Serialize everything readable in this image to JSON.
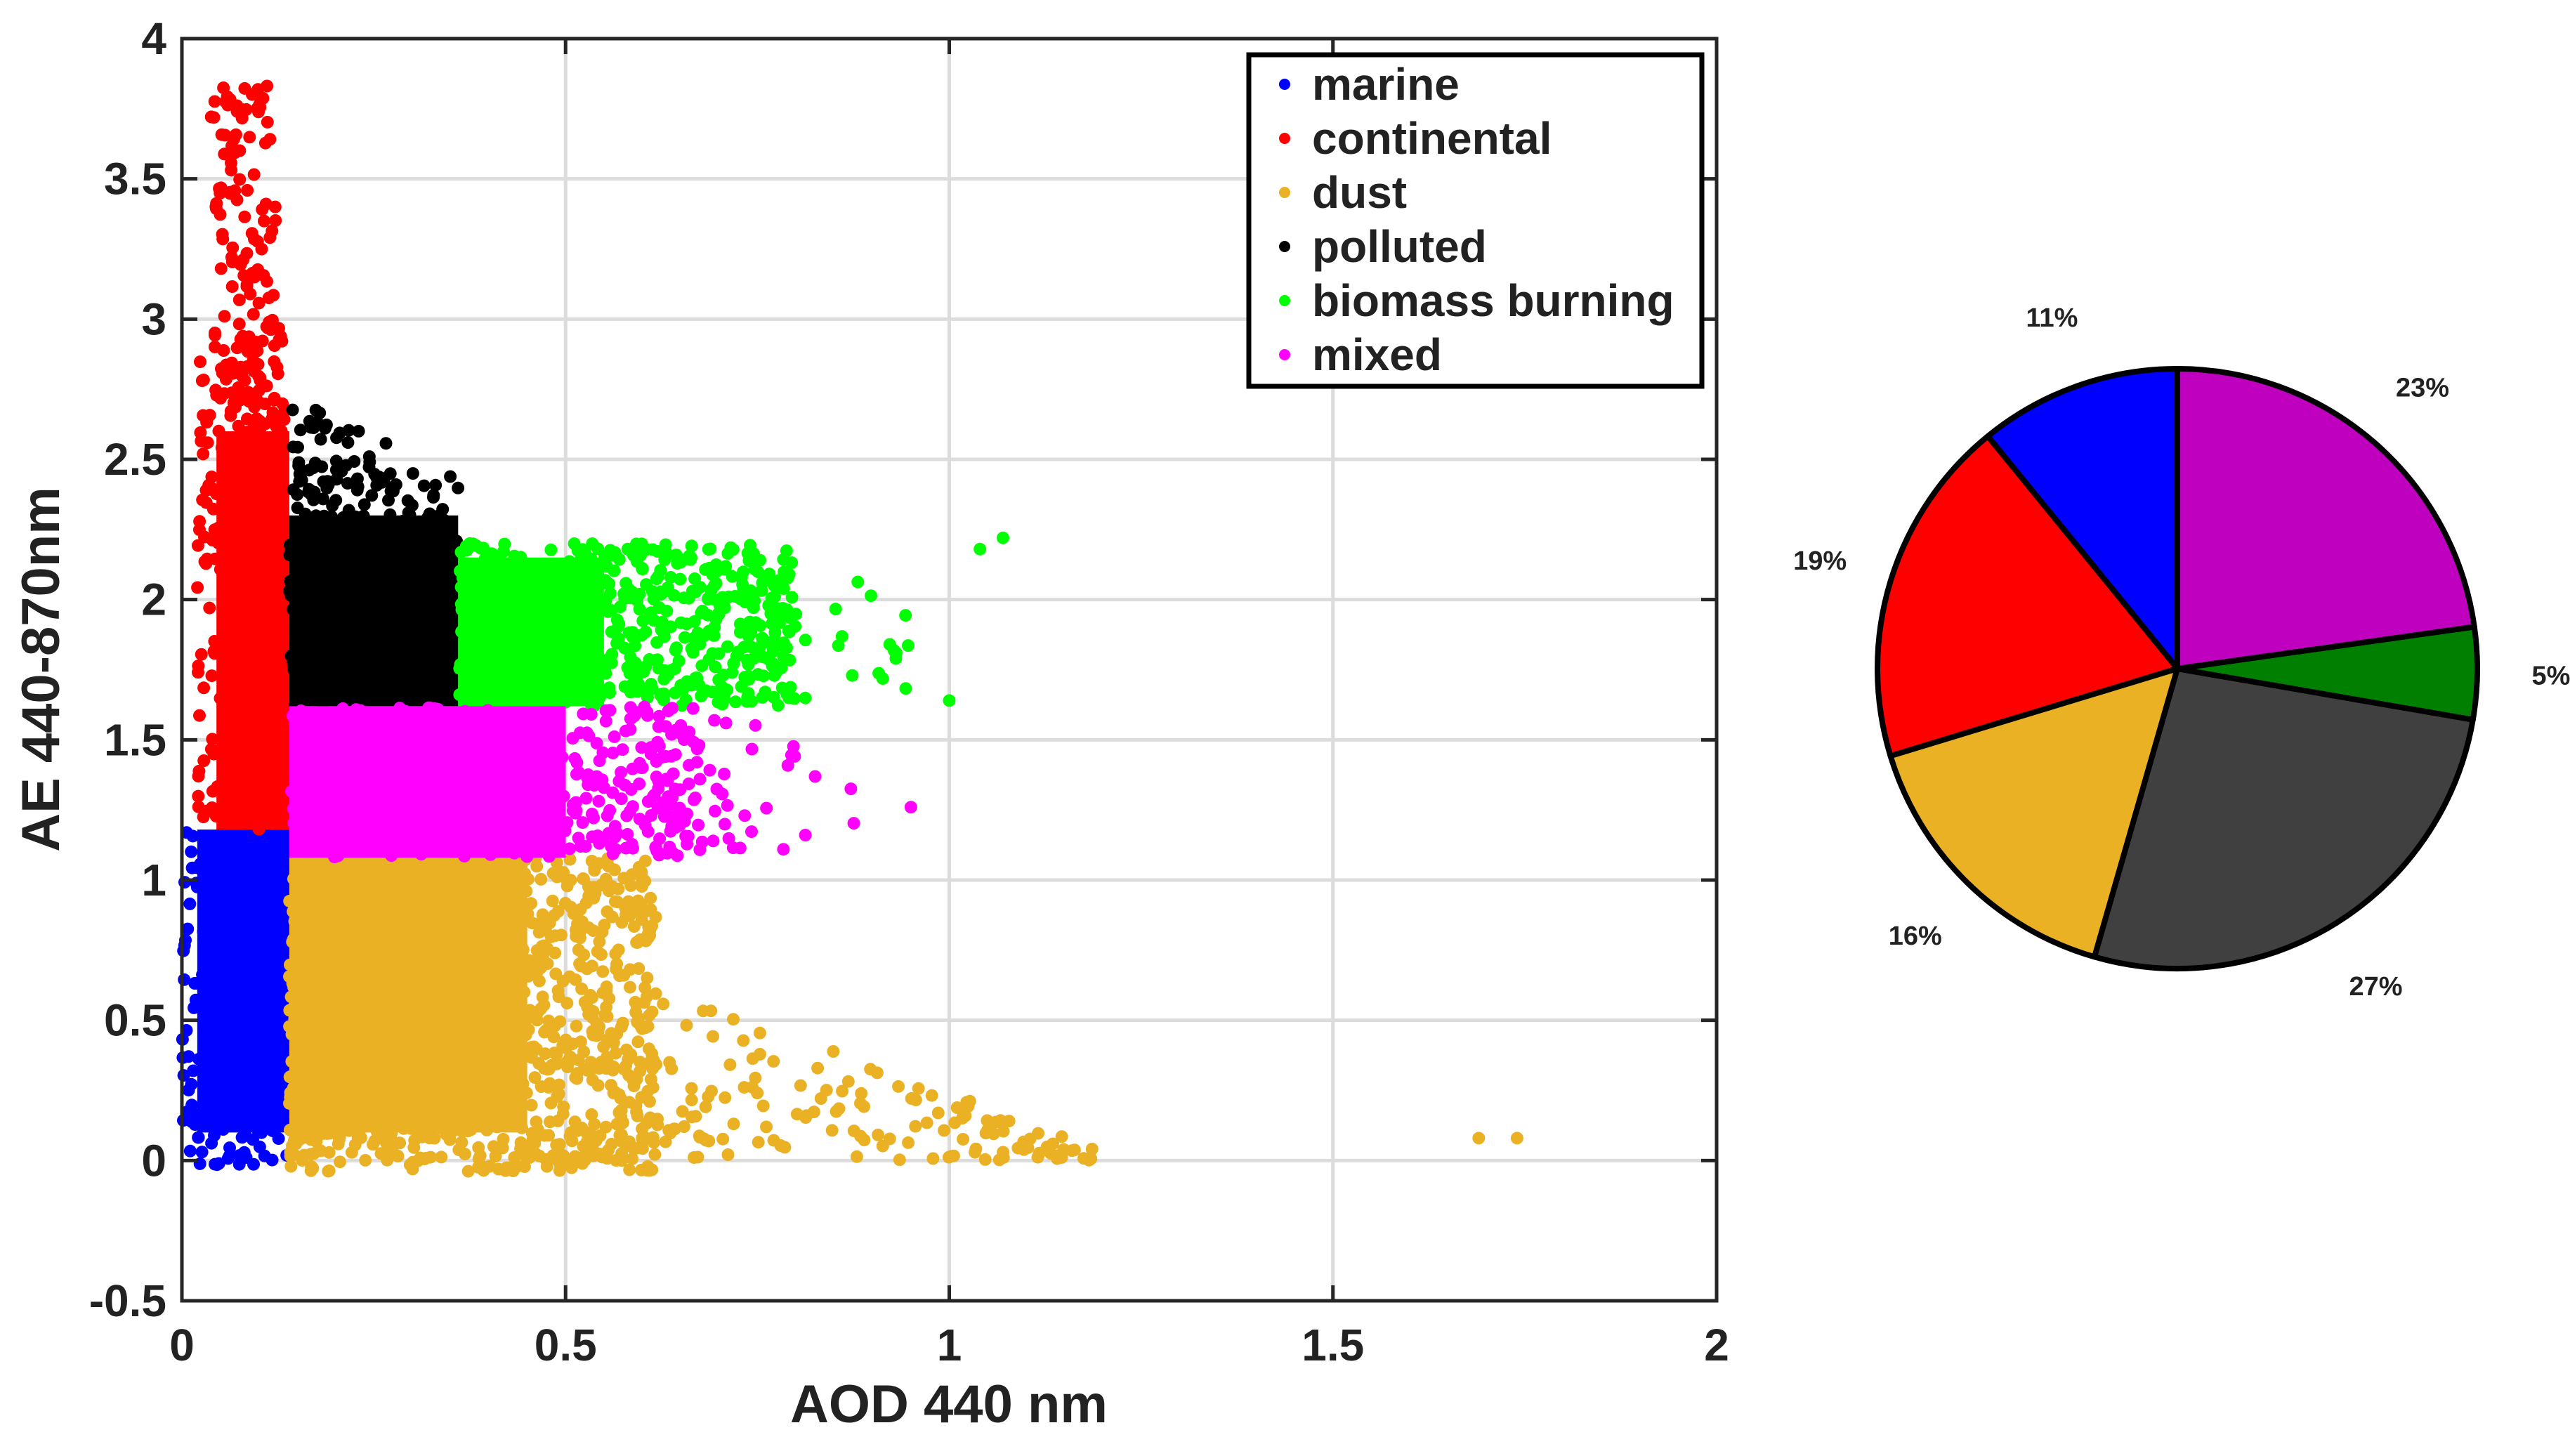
{
  "chart_data": [
    {
      "type": "scatter",
      "xlabel": "AOD 440 nm",
      "ylabel": "AE 440-870nm",
      "xlim": [
        0,
        2
      ],
      "ylim": [
        -0.5,
        4
      ],
      "xticks": [
        0,
        0.5,
        1,
        1.5,
        2
      ],
      "xtick_labels": [
        "0",
        "0.5",
        "1",
        "1.5",
        "2"
      ],
      "yticks": [
        -0.5,
        0,
        0.5,
        1,
        1.5,
        2,
        2.5,
        3,
        3.5,
        4
      ],
      "ytick_labels": [
        "-0.5",
        "0",
        "0.5",
        "1",
        "1.5",
        "2",
        "2.5",
        "3",
        "3.5",
        "4"
      ],
      "grid": true,
      "legend_position": "top-right",
      "series": [
        {
          "name": "marine",
          "color": "#0000ff",
          "x_range": [
            0.0,
            0.14
          ],
          "y_range": [
            -0.02,
            1.18
          ]
        },
        {
          "name": "continental",
          "color": "#ff0000",
          "x_range": [
            0.02,
            0.14
          ],
          "y_range": [
            1.18,
            3.87
          ]
        },
        {
          "name": "dust",
          "color": "#ebb125",
          "x_range": [
            0.14,
            1.75
          ],
          "y_range": [
            -0.05,
            1.08
          ]
        },
        {
          "name": "polluted",
          "color": "#000000",
          "x_range": [
            0.14,
            0.36
          ],
          "y_range": [
            1.62,
            2.72
          ]
        },
        {
          "name": "biomass burning",
          "color": "#00ff00",
          "x_range": [
            0.36,
            1.07
          ],
          "y_range": [
            1.62,
            2.26
          ]
        },
        {
          "name": "mixed",
          "color": "#ff00ff",
          "x_range": [
            0.14,
            0.96
          ],
          "y_range": [
            1.08,
            1.62
          ]
        }
      ],
      "outliers": [
        {
          "series": "dust",
          "x": 1.69,
          "y": 0.08
        },
        {
          "series": "dust",
          "x": 1.74,
          "y": 0.08
        },
        {
          "series": "biomass burning",
          "x": 1.07,
          "y": 2.22
        },
        {
          "series": "biomass burning",
          "x": 1.04,
          "y": 2.18
        },
        {
          "series": "mixed",
          "x": 0.95,
          "y": 1.26
        },
        {
          "series": "biomass burning",
          "x": 1.0,
          "y": 1.64
        }
      ]
    },
    {
      "type": "pie",
      "slices": [
        {
          "label": "11%",
          "value": 11,
          "color": "#0000ff"
        },
        {
          "label": "19%",
          "value": 19,
          "color": "#ff0000"
        },
        {
          "label": "16%",
          "value": 16,
          "color": "#ebb125"
        },
        {
          "label": "27%",
          "value": 27,
          "color": "#404040"
        },
        {
          "label": "5%",
          "value": 5,
          "color": "#007f00"
        },
        {
          "label": "23%",
          "value": 23,
          "color": "#bf00bf"
        }
      ]
    }
  ]
}
